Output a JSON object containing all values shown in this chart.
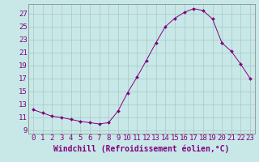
{
  "x": [
    0,
    1,
    2,
    3,
    4,
    5,
    6,
    7,
    8,
    9,
    10,
    11,
    12,
    13,
    14,
    15,
    16,
    17,
    18,
    19,
    20,
    21,
    22,
    23
  ],
  "y": [
    12.2,
    11.7,
    11.2,
    11.0,
    10.7,
    10.4,
    10.2,
    10.0,
    10.2,
    12.0,
    14.8,
    17.2,
    19.8,
    22.5,
    25.0,
    26.3,
    27.2,
    27.8,
    27.5,
    26.2,
    22.5,
    21.2,
    19.2,
    17.0
  ],
  "line_color": "#800080",
  "marker": "D",
  "marker_size": 2,
  "bg_color": "#c8e8e8",
  "grid_color": "#a8c8c8",
  "xlabel": "Windchill (Refroidissement éolien,°C)",
  "xlabel_color": "#800080",
  "xlabel_fontsize": 7,
  "yticks": [
    9,
    11,
    13,
    15,
    17,
    19,
    21,
    23,
    25,
    27
  ],
  "xlim": [
    -0.5,
    23.5
  ],
  "ylim": [
    8.5,
    28.5
  ],
  "tick_color": "#800080",
  "tick_fontsize": 6.5,
  "linewidth": 0.7
}
